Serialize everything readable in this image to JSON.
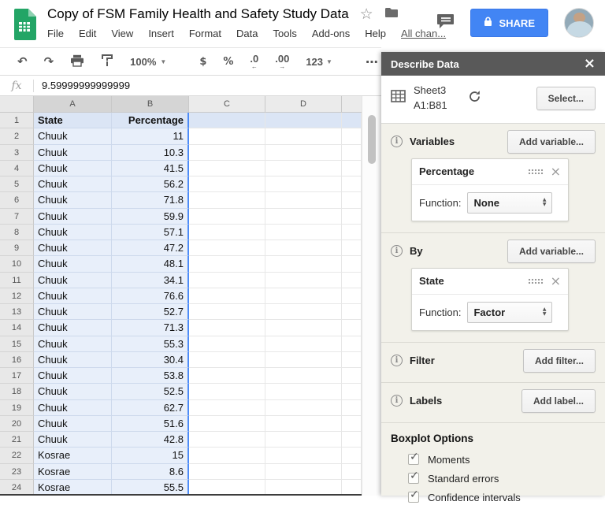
{
  "header": {
    "title": "Copy of FSM Family Health and Safety Study Data",
    "menus": [
      "File",
      "Edit",
      "View",
      "Insert",
      "Format",
      "Data",
      "Tools",
      "Add-ons",
      "Help"
    ],
    "all_changes_link": "All chan...",
    "share_label": "SHARE"
  },
  "toolbar": {
    "zoom_value": "100%",
    "currency_label": "$",
    "percent_label": "%",
    "decrease_decimal_label": ".0",
    "increase_decimal_label": ".00",
    "number_format_label": "123",
    "more_label": "⋯"
  },
  "formula_bar": {
    "fx_label": "fx",
    "value": "9.59999999999999"
  },
  "sheet": {
    "column_headers": [
      "A",
      "B",
      "C",
      "D"
    ],
    "rows": [
      [
        "State",
        "Percentage"
      ],
      [
        "Chuuk",
        "11"
      ],
      [
        "Chuuk",
        "10.3"
      ],
      [
        "Chuuk",
        "41.5"
      ],
      [
        "Chuuk",
        "56.2"
      ],
      [
        "Chuuk",
        "71.8"
      ],
      [
        "Chuuk",
        "59.9"
      ],
      [
        "Chuuk",
        "57.1"
      ],
      [
        "Chuuk",
        "47.2"
      ],
      [
        "Chuuk",
        "48.1"
      ],
      [
        "Chuuk",
        "34.1"
      ],
      [
        "Chuuk",
        "76.6"
      ],
      [
        "Chuuk",
        "52.7"
      ],
      [
        "Chuuk",
        "71.3"
      ],
      [
        "Chuuk",
        "55.3"
      ],
      [
        "Chuuk",
        "30.4"
      ],
      [
        "Chuuk",
        "53.8"
      ],
      [
        "Chuuk",
        "52.5"
      ],
      [
        "Chuuk",
        "62.7"
      ],
      [
        "Chuuk",
        "51.6"
      ],
      [
        "Chuuk",
        "42.8"
      ],
      [
        "Kosrae",
        "15"
      ],
      [
        "Kosrae",
        "8.6"
      ],
      [
        "Kosrae",
        "55.5"
      ]
    ]
  },
  "panel": {
    "title": "Describe Data",
    "close_label": "×",
    "source": {
      "sheet_name": "Sheet3",
      "range": "A1:B81",
      "select_label": "Select..."
    },
    "variables": {
      "label": "Variables",
      "button": "Add variable...",
      "card": {
        "name": "Percentage",
        "function_label": "Function:",
        "function_value": "None"
      }
    },
    "by": {
      "label": "By",
      "button": "Add variable...",
      "card": {
        "name": "State",
        "function_label": "Function:",
        "function_value": "Factor"
      }
    },
    "filter": {
      "label": "Filter",
      "button": "Add filter..."
    },
    "labels": {
      "label": "Labels",
      "button": "Add label..."
    },
    "boxplot": {
      "title": "Boxplot Options",
      "options": [
        {
          "label": "Moments",
          "checked": true
        },
        {
          "label": "Standard errors",
          "checked": true
        },
        {
          "label": "Confidence intervals",
          "checked": true
        }
      ]
    }
  },
  "colors": {
    "share_button": "#4285f4",
    "sheets_green": "#23a566",
    "panel_header": "#595959",
    "selection_tint": "#e8effa",
    "selection_border": "#4e8cf7"
  }
}
